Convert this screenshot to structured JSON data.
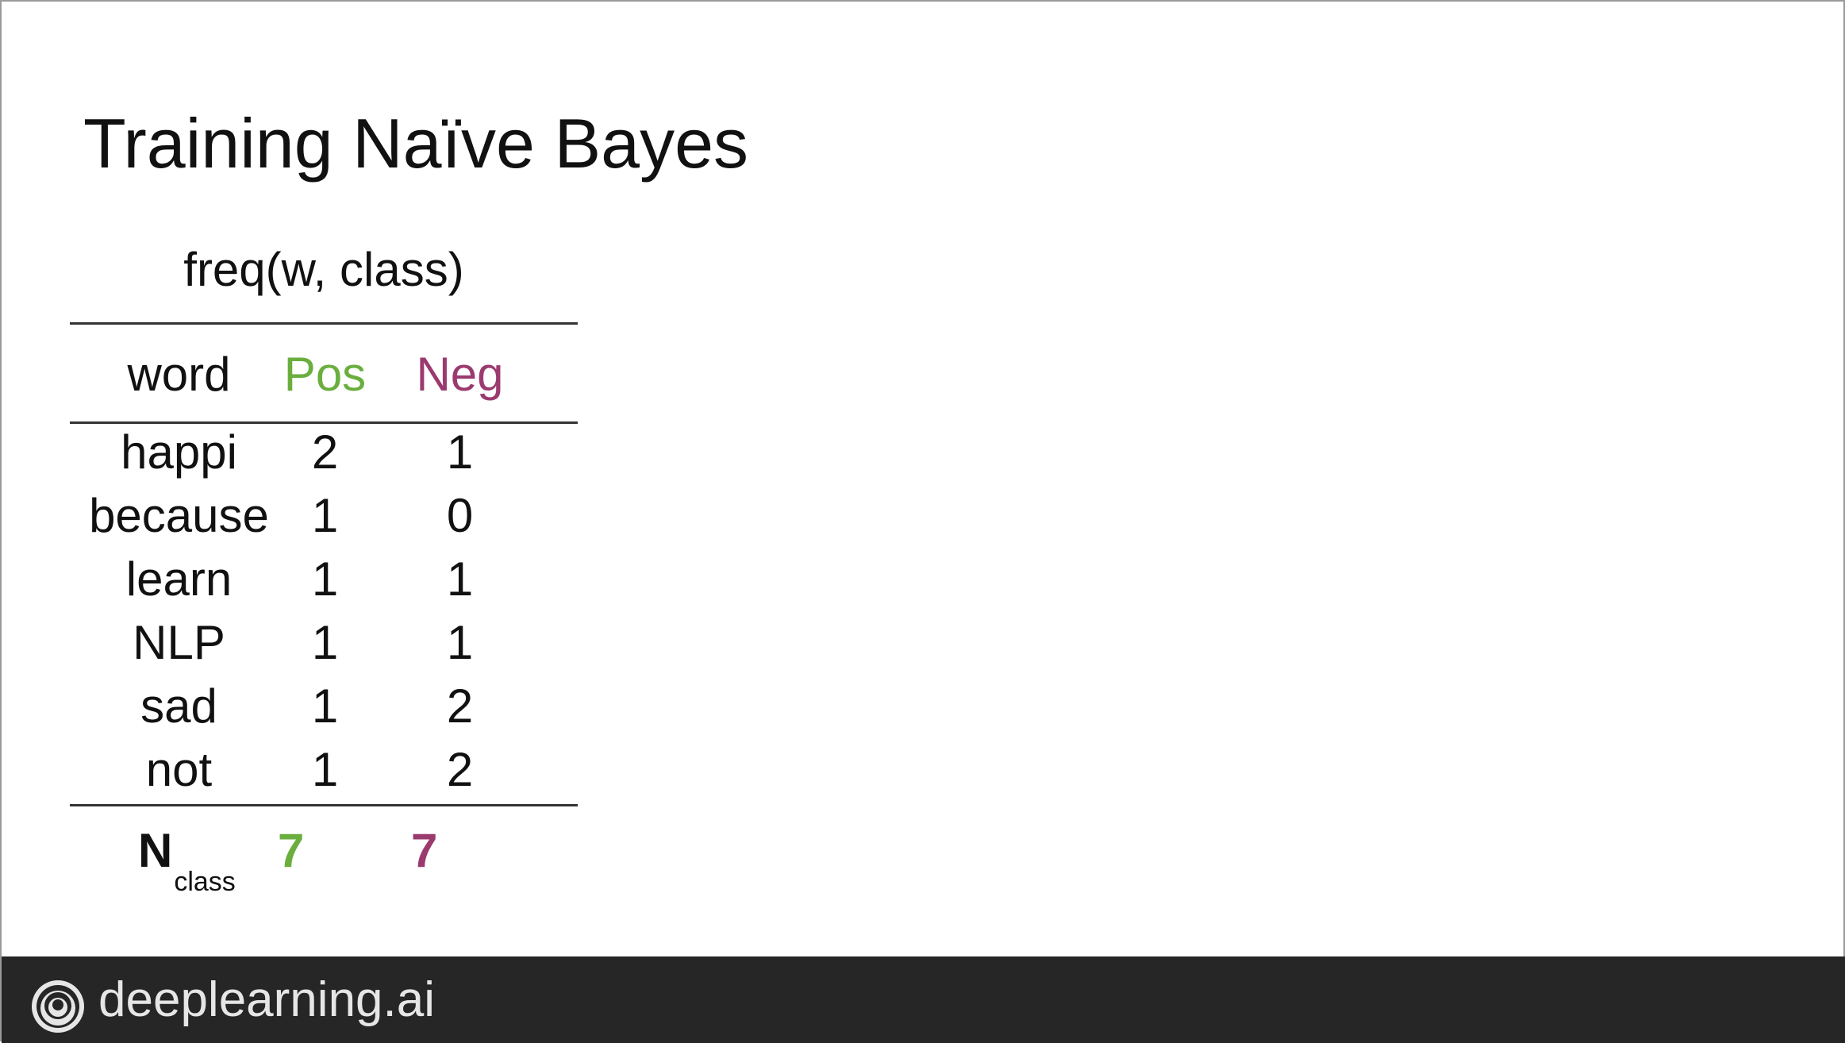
{
  "slide": {
    "title": "Training Naïve Bayes"
  },
  "table": {
    "caption": "freq(w, class)",
    "headers": {
      "word": "word",
      "pos": "Pos",
      "neg": "Neg"
    },
    "rows": [
      {
        "word": "happi",
        "pos": "2",
        "neg": "1"
      },
      {
        "word": "because",
        "pos": "1",
        "neg": "0"
      },
      {
        "word": "learn",
        "pos": "1",
        "neg": "1"
      },
      {
        "word": "NLP",
        "pos": "1",
        "neg": "1"
      },
      {
        "word": "sad",
        "pos": "1",
        "neg": "2"
      },
      {
        "word": "not",
        "pos": "1",
        "neg": "2"
      }
    ],
    "totals": {
      "label_main": "N",
      "label_sub": "class",
      "pos": "7",
      "neg": "7"
    }
  },
  "colors": {
    "pos": "#6aae3e",
    "neg": "#9b3a6e",
    "footer_bg": "#262626"
  },
  "footer": {
    "logo_icon": "deeplearning-logo-icon",
    "brand": "deeplearning.ai"
  }
}
